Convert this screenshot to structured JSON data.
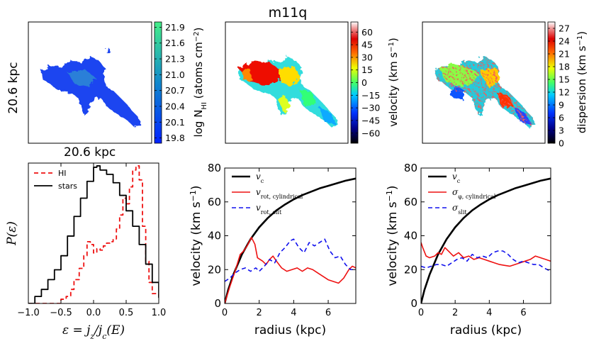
{
  "figure_title": "m11q",
  "maps": {
    "scale_x_label": "20.6 kpc",
    "scale_y_label": "20.6 kpc",
    "nhi": {
      "colorbar_label": "log N_HI (atoms cm^-2)",
      "cb_label_pre": "log N",
      "cb_label_sub": "HI",
      "cb_label_post": " (atoms cm",
      "cb_label_sup": "−2",
      "cb_label_end": ")",
      "ticks": [
        "21.9",
        "21.6",
        "21.3",
        "21.0",
        "20.7",
        "20.4",
        "20.1",
        "19.8"
      ],
      "range": [
        19.7,
        22.0
      ],
      "colors": {
        "low": "#0033ff",
        "high": "#33ee88"
      }
    },
    "velocity": {
      "colorbar_label": "velocity (km s^-1)",
      "cb_label_pre": "velocity (km s",
      "cb_label_sup": "−1",
      "cb_label_end": ")",
      "ticks": [
        "60",
        "45",
        "30",
        "15",
        "0",
        "−15",
        "−30",
        "−45",
        "−60"
      ],
      "range": [
        -72,
        72
      ]
    },
    "dispersion": {
      "colorbar_label": "dispersion (km s^-1)",
      "cb_label_pre": "dispersion (km s",
      "cb_label_sup": "−1",
      "cb_label_end": ")",
      "ticks": [
        "27",
        "24",
        "21",
        "18",
        "15",
        "12",
        "9",
        "6",
        "3",
        "0"
      ],
      "range": [
        0,
        28.5
      ]
    }
  },
  "chart_data": [
    {
      "type": "line",
      "panel": "epsilon-distribution",
      "xlabel": "ε = j_z/j_c(E)",
      "ylabel": "P(ε)",
      "xlim": [
        -1.0,
        1.0
      ],
      "ylim": [
        0,
        1.0
      ],
      "xticks": [
        "−1.0",
        "−0.5",
        "0.0",
        "0.5",
        "1.0"
      ],
      "legend_position": "top-left",
      "series": [
        {
          "name": "HI",
          "style": "dashed",
          "color": "#ee1111",
          "x": [
            -1.0,
            -0.58,
            -0.5,
            -0.42,
            -0.35,
            -0.3,
            -0.22,
            -0.15,
            -0.1,
            -0.05,
            0.0,
            0.05,
            0.1,
            0.15,
            0.2,
            0.25,
            0.3,
            0.35,
            0.4,
            0.45,
            0.5,
            0.55,
            0.6,
            0.65,
            0.7,
            0.75,
            0.8,
            0.85,
            0.9,
            1.0
          ],
          "y": [
            0.0,
            0.0,
            0.03,
            0.05,
            0.1,
            0.17,
            0.25,
            0.34,
            0.44,
            0.42,
            0.36,
            0.39,
            0.38,
            0.41,
            0.43,
            0.44,
            0.46,
            0.53,
            0.63,
            0.75,
            0.71,
            0.83,
            0.95,
            0.98,
            0.88,
            0.55,
            0.3,
            0.15,
            0.07,
            0.05
          ]
        },
        {
          "name": "stars",
          "style": "solid",
          "color": "#000000",
          "x": [
            -1.0,
            -0.9,
            -0.8,
            -0.7,
            -0.6,
            -0.5,
            -0.4,
            -0.3,
            -0.2,
            -0.1,
            0.0,
            0.05,
            0.1,
            0.2,
            0.3,
            0.4,
            0.5,
            0.6,
            0.7,
            0.8,
            0.9,
            1.0
          ],
          "y": [
            0.0,
            0.05,
            0.1,
            0.17,
            0.24,
            0.34,
            0.48,
            0.62,
            0.75,
            0.87,
            0.97,
            0.98,
            0.95,
            0.92,
            0.86,
            0.77,
            0.66,
            0.55,
            0.42,
            0.28,
            0.15,
            0.04
          ]
        }
      ]
    },
    {
      "type": "line",
      "panel": "rotation-curve",
      "xlabel": "radius (kpc)",
      "ylabel": "velocity (km s^-1)",
      "xlim": [
        0,
        7.6
      ],
      "ylim": [
        0,
        80
      ],
      "xticks": [
        0,
        2,
        4,
        6
      ],
      "yticks": [
        0,
        20,
        40,
        60,
        80
      ],
      "legend_position": "top-left",
      "series": [
        {
          "name": "v_c",
          "label_main": "v",
          "label_sub": "c",
          "style": "solid",
          "color": "#000000",
          "lw": 2.6,
          "x": [
            0,
            0.2,
            0.5,
            1,
            1.5,
            2,
            2.5,
            3,
            3.5,
            4,
            4.5,
            5,
            5.5,
            6,
            6.5,
            7,
            7.6
          ],
          "y": [
            0,
            8,
            17,
            29,
            38,
            45,
            50.5,
            55,
            58.5,
            61.5,
            64,
            66,
            68,
            69.5,
            71,
            72.5,
            73.8
          ]
        },
        {
          "name": "v_rot, cylindrical",
          "label_main": "v",
          "label_sub": "rot, cylindrical",
          "style": "solid",
          "color": "#ee1111",
          "lw": 1.6,
          "x": [
            0,
            0.3,
            0.6,
            0.9,
            1.1,
            1.3,
            1.55,
            1.75,
            1.9,
            2.2,
            2.4,
            2.6,
            2.8,
            3.0,
            3.3,
            3.6,
            3.9,
            4.2,
            4.5,
            4.8,
            5.1,
            5.4,
            5.7,
            6.0,
            6.3,
            6.6,
            6.9,
            7.2,
            7.4,
            7.6
          ],
          "y": [
            0,
            10,
            19,
            29,
            31,
            34,
            39,
            35,
            27,
            25,
            23,
            26,
            28,
            25,
            21,
            19,
            20,
            21,
            19,
            21,
            20,
            18,
            16,
            14,
            13,
            12,
            15,
            20,
            22,
            21
          ]
        },
        {
          "name": "v_rot, slit",
          "label_main": "v",
          "label_sub": "rot, slit",
          "style": "dashed",
          "color": "#1111ee",
          "lw": 1.6,
          "x": [
            0,
            0.3,
            0.6,
            0.9,
            1.2,
            1.5,
            1.8,
            2.0,
            2.3,
            2.6,
            2.9,
            3.2,
            3.5,
            3.8,
            4.0,
            4.3,
            4.6,
            4.9,
            5.2,
            5.5,
            5.8,
            6.1,
            6.4,
            6.7,
            7.0,
            7.3,
            7.6
          ],
          "y": [
            13,
            15,
            18,
            20,
            21,
            19,
            21,
            19,
            22,
            26,
            24,
            30,
            33,
            37,
            38,
            33,
            30,
            36,
            34,
            36,
            38,
            31,
            27,
            28,
            23,
            20,
            20
          ]
        }
      ]
    },
    {
      "type": "line",
      "panel": "dispersion-curve",
      "xlabel": "radius (kpc)",
      "ylabel": "velocity (km s^-1)",
      "xlim": [
        0,
        7.6
      ],
      "ylim": [
        0,
        80
      ],
      "xticks": [
        0,
        2,
        4,
        6
      ],
      "yticks": [
        0,
        20,
        40,
        60,
        80
      ],
      "legend_position": "top-left",
      "series": [
        {
          "name": "v_c",
          "label_main": "v",
          "label_sub": "c",
          "style": "solid",
          "color": "#000000",
          "lw": 2.6,
          "x": [
            0,
            0.2,
            0.5,
            1,
            1.5,
            2,
            2.5,
            3,
            3.5,
            4,
            4.5,
            5,
            5.5,
            6,
            6.5,
            7,
            7.6
          ],
          "y": [
            0,
            8,
            17,
            29,
            38,
            45,
            50.5,
            55,
            58.5,
            61.5,
            64,
            66,
            68,
            69.5,
            71,
            72.5,
            73.8
          ]
        },
        {
          "name": "σ_φ, cylindrical",
          "label_main": "σ",
          "label_sub": "φ, cylindrical",
          "style": "solid",
          "color": "#ee1111",
          "lw": 1.6,
          "x": [
            0,
            0.1,
            0.3,
            0.5,
            0.8,
            1.0,
            1.2,
            1.4,
            1.6,
            1.9,
            2.2,
            2.5,
            2.8,
            3.1,
            3.4,
            3.7,
            4.0,
            4.3,
            4.6,
            4.9,
            5.2,
            5.5,
            5.8,
            6.1,
            6.4,
            6.7,
            7.0,
            7.3,
            7.6
          ],
          "y": [
            36,
            33,
            28,
            27,
            28,
            30,
            29,
            33,
            31,
            28,
            30,
            27,
            28,
            26,
            27,
            26,
            25,
            24,
            23,
            22.5,
            22,
            23,
            24,
            25,
            26,
            28,
            27,
            26,
            25
          ]
        },
        {
          "name": "σ_slit",
          "label_main": "σ",
          "label_sub": "slit",
          "style": "dashed",
          "color": "#1111ee",
          "lw": 1.6,
          "x": [
            0,
            0.3,
            0.6,
            0.9,
            1.2,
            1.5,
            1.8,
            2.1,
            2.4,
            2.7,
            3.0,
            3.3,
            3.6,
            3.9,
            4.2,
            4.5,
            4.8,
            5.1,
            5.4,
            5.7,
            6.0,
            6.3,
            6.6,
            6.9,
            7.2,
            7.6
          ],
          "y": [
            22,
            21,
            22,
            23,
            23,
            22,
            24,
            26,
            27,
            25,
            29,
            27,
            28,
            27,
            30,
            31,
            31,
            29,
            26,
            24,
            25,
            24,
            23,
            23,
            21,
            19
          ]
        }
      ]
    }
  ]
}
